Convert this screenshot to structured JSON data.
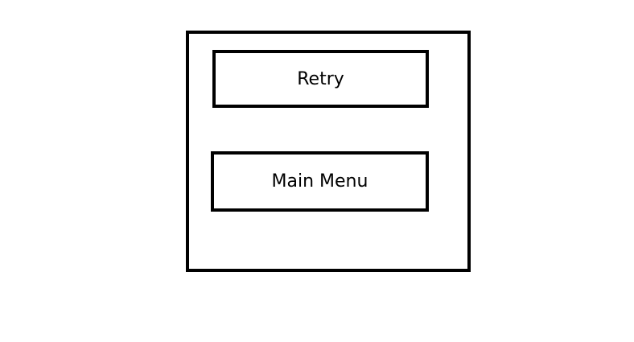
{
  "dialog": {
    "buttons": {
      "retry_label": "Retry",
      "main_menu_label": "Main Menu"
    }
  }
}
